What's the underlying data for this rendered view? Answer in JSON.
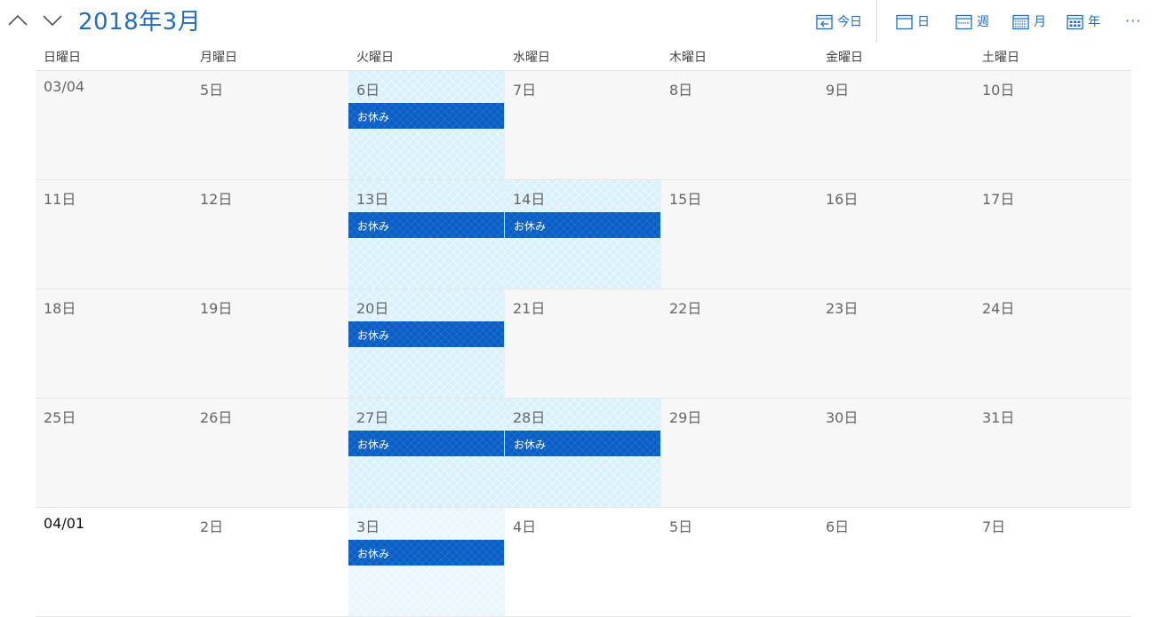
{
  "header": {
    "title": "2018年3月",
    "today_label": "今日",
    "day_label": "日",
    "week_label": "週",
    "month_label": "月",
    "year_label": "年",
    "more_label": "···"
  },
  "weekdays": [
    "日曜日",
    "月曜日",
    "火曜日",
    "水曜日",
    "木曜日",
    "金曜日",
    "土曜日"
  ],
  "weeks": [
    [
      {
        "label": "03/04",
        "strong": false,
        "next": false,
        "hatch": false,
        "event": ""
      },
      {
        "label": "5日",
        "strong": false,
        "next": false,
        "hatch": false,
        "event": ""
      },
      {
        "label": "6日",
        "strong": false,
        "next": false,
        "hatch": true,
        "event": "お休み"
      },
      {
        "label": "7日",
        "strong": false,
        "next": false,
        "hatch": false,
        "event": ""
      },
      {
        "label": "8日",
        "strong": false,
        "next": false,
        "hatch": false,
        "event": ""
      },
      {
        "label": "9日",
        "strong": false,
        "next": false,
        "hatch": false,
        "event": ""
      },
      {
        "label": "10日",
        "strong": false,
        "next": false,
        "hatch": false,
        "event": ""
      }
    ],
    [
      {
        "label": "11日",
        "strong": false,
        "next": false,
        "hatch": false,
        "event": ""
      },
      {
        "label": "12日",
        "strong": false,
        "next": false,
        "hatch": false,
        "event": ""
      },
      {
        "label": "13日",
        "strong": false,
        "next": false,
        "hatch": true,
        "event": "お休み"
      },
      {
        "label": "14日",
        "strong": false,
        "next": false,
        "hatch": true,
        "event": "お休み"
      },
      {
        "label": "15日",
        "strong": false,
        "next": false,
        "hatch": false,
        "event": ""
      },
      {
        "label": "16日",
        "strong": false,
        "next": false,
        "hatch": false,
        "event": ""
      },
      {
        "label": "17日",
        "strong": false,
        "next": false,
        "hatch": false,
        "event": ""
      }
    ],
    [
      {
        "label": "18日",
        "strong": false,
        "next": false,
        "hatch": false,
        "event": ""
      },
      {
        "label": "19日",
        "strong": false,
        "next": false,
        "hatch": false,
        "event": ""
      },
      {
        "label": "20日",
        "strong": false,
        "next": false,
        "hatch": true,
        "event": "お休み"
      },
      {
        "label": "21日",
        "strong": false,
        "next": false,
        "hatch": false,
        "event": ""
      },
      {
        "label": "22日",
        "strong": false,
        "next": false,
        "hatch": false,
        "event": ""
      },
      {
        "label": "23日",
        "strong": false,
        "next": false,
        "hatch": false,
        "event": ""
      },
      {
        "label": "24日",
        "strong": false,
        "next": false,
        "hatch": false,
        "event": ""
      }
    ],
    [
      {
        "label": "25日",
        "strong": false,
        "next": false,
        "hatch": false,
        "event": ""
      },
      {
        "label": "26日",
        "strong": false,
        "next": false,
        "hatch": false,
        "event": ""
      },
      {
        "label": "27日",
        "strong": false,
        "next": false,
        "hatch": true,
        "event": "お休み"
      },
      {
        "label": "28日",
        "strong": false,
        "next": false,
        "hatch": true,
        "event": "お休み"
      },
      {
        "label": "29日",
        "strong": false,
        "next": false,
        "hatch": false,
        "event": ""
      },
      {
        "label": "30日",
        "strong": false,
        "next": false,
        "hatch": false,
        "event": ""
      },
      {
        "label": "31日",
        "strong": false,
        "next": false,
        "hatch": false,
        "event": ""
      }
    ],
    [
      {
        "label": "04/01",
        "strong": true,
        "next": true,
        "hatch": false,
        "event": ""
      },
      {
        "label": "2日",
        "strong": false,
        "next": true,
        "hatch": false,
        "event": ""
      },
      {
        "label": "3日",
        "strong": false,
        "next": true,
        "hatch": true,
        "event": "お休み"
      },
      {
        "label": "4日",
        "strong": false,
        "next": true,
        "hatch": false,
        "event": ""
      },
      {
        "label": "5日",
        "strong": false,
        "next": true,
        "hatch": false,
        "event": ""
      },
      {
        "label": "6日",
        "strong": false,
        "next": true,
        "hatch": false,
        "event": ""
      },
      {
        "label": "7日",
        "strong": false,
        "next": true,
        "hatch": false,
        "event": ""
      }
    ]
  ],
  "colors": {
    "accent": "#1e6fc2",
    "event": "#0a5fc7",
    "hatch": "#d9f1fc"
  }
}
